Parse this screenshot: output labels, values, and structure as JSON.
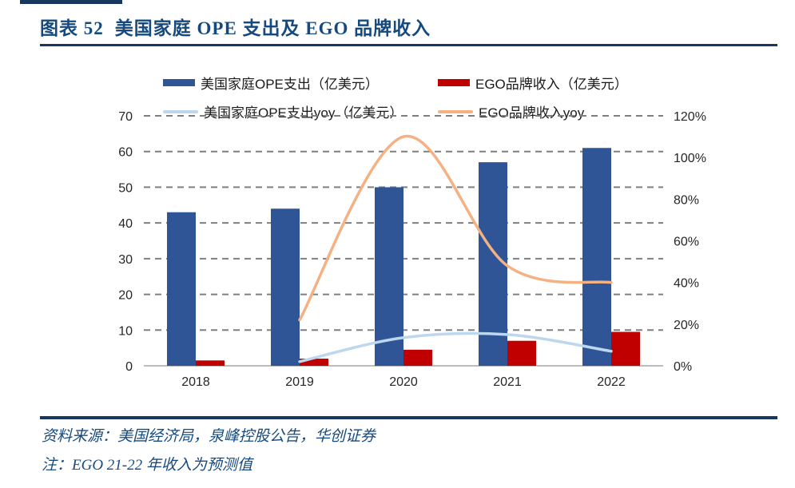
{
  "header": {
    "title_prefix": "图表 52",
    "title_main": "美国家庭 OPE 支出及 EGO 品牌收入"
  },
  "footer": {
    "source": "资料来源：美国经济局，泉峰控股公告，华创证券",
    "note": "注：EGO 21-22 年收入为预测值"
  },
  "colors": {
    "bar_blue": "#2F5597",
    "bar_red": "#C00000",
    "line_lightblue": "#BDD7EE",
    "line_orange": "#F4B183",
    "grid": "#7F7F7F",
    "axis": "#A6A6A6",
    "tick_text": "#262626",
    "rule_navy": "#17375E",
    "title_blue": "#164A7E"
  },
  "chart_data": {
    "type": "bar",
    "subtype": "combo-bar-line",
    "categories": [
      "2018",
      "2019",
      "2020",
      "2021",
      "2022"
    ],
    "bar_series": [
      {
        "key": "ope-spend",
        "name": "美国家庭OPE支出（亿美元）",
        "color_key": "bar_blue",
        "axis": "left",
        "values": [
          43,
          44,
          50,
          57,
          61
        ]
      },
      {
        "key": "ego-revenue",
        "name": "EGO品牌收入（亿美元）",
        "color_key": "bar_red",
        "axis": "left",
        "values": [
          1.5,
          2,
          4.5,
          7,
          9.5
        ]
      }
    ],
    "line_series": [
      {
        "key": "ope-spend-yoy",
        "name": "美国家庭OPE支出yoy（亿美元）",
        "color_key": "line_lightblue",
        "axis": "right",
        "values_pct": [
          null,
          2,
          13.5,
          15,
          7
        ]
      },
      {
        "key": "ego-revenue-yoy",
        "name": "EGO品牌收入yoy",
        "color_key": "line_orange",
        "axis": "right",
        "values_pct": [
          null,
          22,
          110,
          48,
          40
        ]
      }
    ],
    "left_axis": {
      "min": 0,
      "max": 70,
      "step": 10,
      "ticks": [
        "0",
        "10",
        "20",
        "30",
        "40",
        "50",
        "60",
        "70"
      ]
    },
    "right_axis": {
      "min": 0,
      "max": 120,
      "step": 20,
      "ticks": [
        "0%",
        "20%",
        "40%",
        "60%",
        "80%",
        "100%",
        "120%"
      ]
    },
    "grid": "dashed-horizontal",
    "legend_position": "top"
  }
}
